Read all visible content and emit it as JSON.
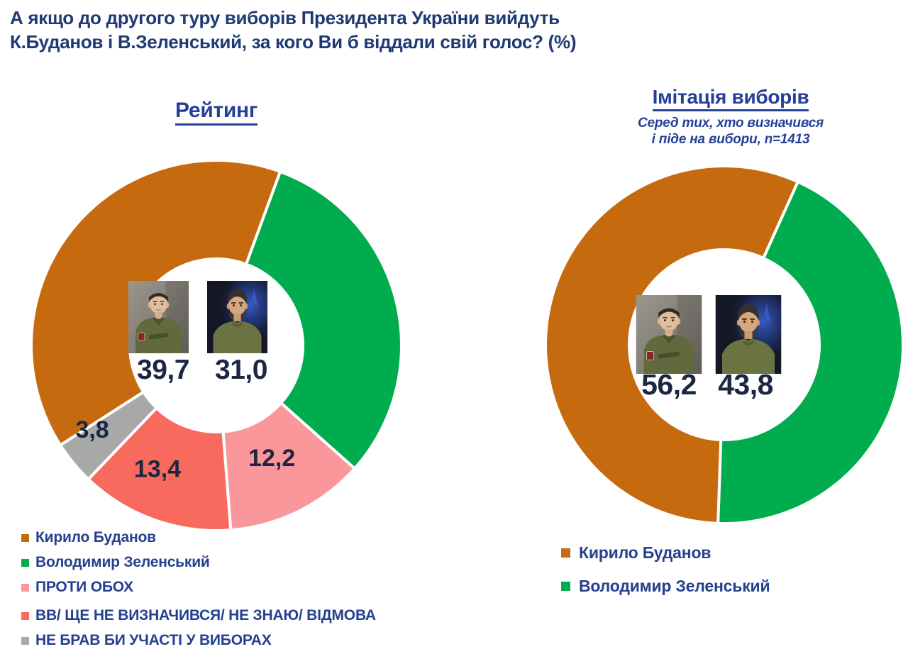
{
  "question_title": {
    "line1": "А якщо до другого туру виборів Президента України вийдуть",
    "line2": "К.Буданов і В.Зеленський, за кого Ви б віддали свій голос? (%)"
  },
  "colors": {
    "title_text": "#1e3a74",
    "chart_title": "#26409a",
    "legend_text": "#24408f",
    "value_text": "#1b2742",
    "separator": "#ffffff"
  },
  "chart_data": [
    {
      "type": "donut",
      "title": "Рейтинг",
      "legend_position": "bottom-left",
      "start_angle": 237.4,
      "direction": "clockwise",
      "center_photos": [
        "budanov-portrait",
        "zelensky-portrait"
      ],
      "center_values": [
        {
          "candidate": "Кирило Буданов",
          "display": "39,7"
        },
        {
          "candidate": "Володимир Зеленський",
          "display": "31,0"
        }
      ],
      "segments": [
        {
          "label": "Кирило Буданов",
          "value": 39.7,
          "display": "39,7",
          "color": "#C66A0F"
        },
        {
          "label": "Володимир Зеленський",
          "value": 31.0,
          "display": "31,0",
          "color": "#00AC4E"
        },
        {
          "label": "ПРОТИ ОБОХ",
          "value": 12.2,
          "display": "12,2",
          "color": "#F9979B",
          "label_on_slice": true
        },
        {
          "label": "ВВ/ ЩЕ НЕ ВИЗНАЧИВСЯ/ НЕ ЗНАЮ/ ВІДМОВА",
          "value": 13.4,
          "display": "13,4",
          "color": "#F8695E",
          "label_on_slice": true
        },
        {
          "label": "НЕ БРАВ БИ УЧАСТІ У ВИБОРАХ",
          "value": 3.8,
          "display": "3,8",
          "color": "#A8A8A8",
          "label_on_slice": true
        }
      ]
    },
    {
      "type": "donut",
      "title": "Імітація виборів",
      "subtitle_line1": "Серед тих, хто визначився",
      "subtitle_line2": "і піде на вибори, n=1413",
      "legend_position": "bottom",
      "start_angle": 182,
      "direction": "clockwise",
      "center_photos": [
        "budanov-portrait",
        "zelensky-portrait"
      ],
      "center_values": [
        {
          "candidate": "Кирило Буданов",
          "display": "56,2"
        },
        {
          "candidate": "Володимир Зеленський",
          "display": "43,8"
        }
      ],
      "segments": [
        {
          "label": "Кирило Буданов",
          "value": 56.2,
          "display": "56,2",
          "color": "#C66A0F"
        },
        {
          "label": "Володимир Зеленський",
          "value": 43.8,
          "display": "43,8",
          "color": "#00AC4E"
        }
      ]
    }
  ]
}
